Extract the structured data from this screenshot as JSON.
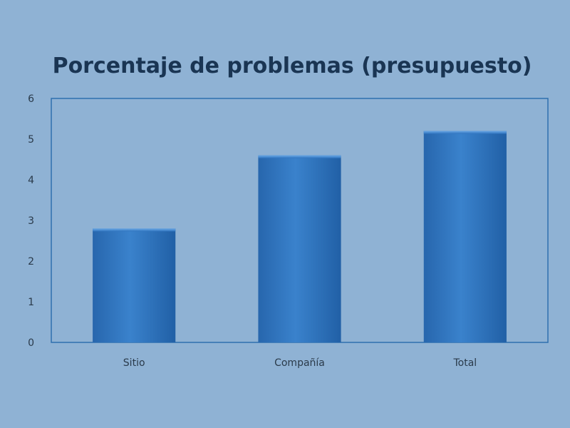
{
  "chart_data": {
    "type": "bar",
    "title": "Porcentaje de problemas (presupuesto)",
    "categories": [
      "Sitio",
      "Compañía",
      "Total"
    ],
    "values": [
      2.8,
      4.6,
      5.2
    ],
    "ylim": [
      0,
      6
    ],
    "yticks": [
      0,
      1,
      2,
      3,
      4,
      5,
      6
    ],
    "grid": false,
    "legend": "none",
    "bar_color": "#2a6db3",
    "background_color": "#8fb2d4",
    "plot_border_color": "#2f6fae"
  }
}
